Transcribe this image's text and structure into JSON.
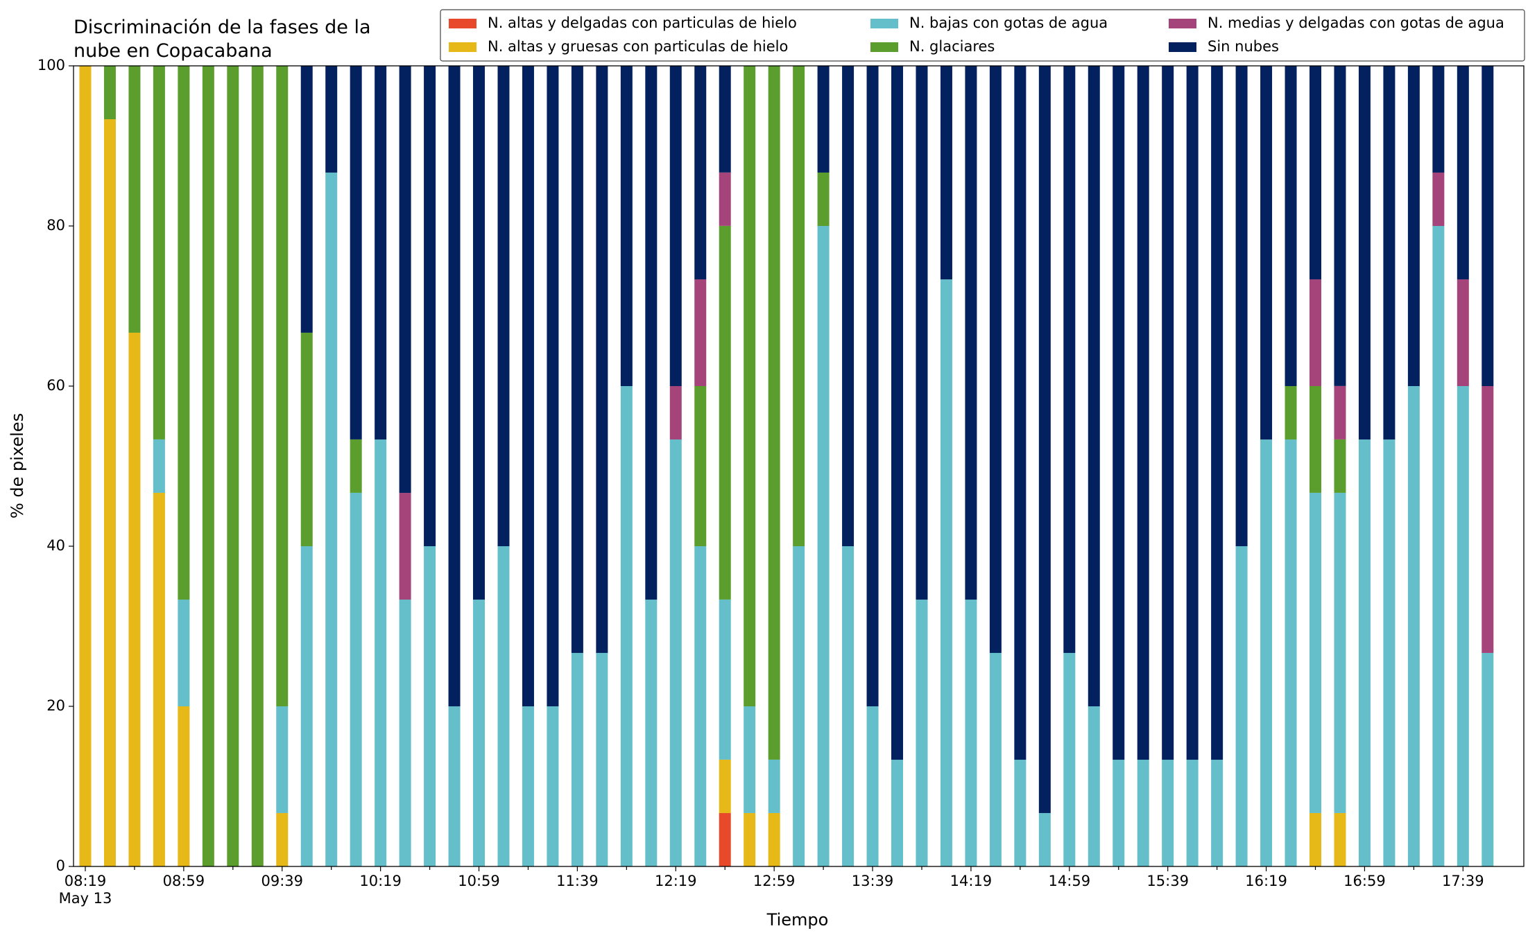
{
  "chart_data": {
    "type": "stacked_bar",
    "title": "Discriminación de la fases de la\nnube en Copacabana",
    "xlabel": "Tiempo",
    "ylabel": "% de pixeles",
    "date": "May 13",
    "categories": [
      "08:19",
      null,
      null,
      null,
      "08:59",
      null,
      null,
      null,
      "09:39",
      null,
      null,
      null,
      "10:19",
      null,
      null,
      null,
      "10:59",
      null,
      null,
      null,
      "11:39",
      null,
      null,
      null,
      "12:19",
      null,
      null,
      null,
      "12:59",
      null,
      null,
      null,
      "13:39",
      null,
      null,
      null,
      "14:19",
      null,
      null,
      null,
      "14:59",
      null,
      null,
      null,
      "15:39",
      null,
      null,
      null,
      "16:19",
      null,
      null,
      null,
      "16:59",
      null,
      null,
      null,
      "17:39",
      null
    ],
    "ylim": [
      0,
      100
    ],
    "yticks": [
      0,
      20,
      40,
      60,
      80,
      100
    ],
    "legend": "upper right",
    "series": [
      {
        "name": "N. altas y delgadas con particulas de hielo",
        "color": "#e8492b",
        "values": [
          0,
          0,
          0,
          0,
          0,
          0,
          0,
          0,
          0,
          0,
          0,
          0,
          0,
          0,
          0,
          0,
          0,
          0,
          0,
          0,
          0,
          0,
          0,
          0,
          0,
          0,
          6.67,
          0,
          0,
          0,
          0,
          0,
          0,
          0,
          0,
          0,
          0,
          0,
          0,
          0,
          0,
          0,
          0,
          0,
          0,
          0,
          0,
          0,
          0,
          0,
          0,
          0,
          0,
          0,
          0,
          0,
          0,
          0
        ]
      },
      {
        "name": "N. altas y gruesas con particulas de hielo",
        "color": "#e6b818",
        "values": [
          100,
          93.33,
          66.67,
          46.67,
          20,
          0,
          0,
          0,
          6.67,
          0,
          0,
          0,
          0,
          0,
          0,
          0,
          0,
          0,
          0,
          0,
          0,
          0,
          0,
          0,
          0,
          0,
          6.67,
          6.67,
          6.67,
          0,
          0,
          0,
          0,
          0,
          0,
          0,
          0,
          0,
          0,
          0,
          0,
          0,
          0,
          0,
          0,
          0,
          0,
          0,
          0,
          0,
          6.67,
          6.67,
          0,
          0,
          0,
          0,
          0,
          0
        ]
      },
      {
        "name": "N. bajas con gotas de agua",
        "color": "#65bfca",
        "values": [
          0,
          0,
          0,
          6.67,
          13.33,
          0,
          0,
          0,
          13.33,
          40,
          86.67,
          46.67,
          53.33,
          33.33,
          40,
          20,
          33.33,
          40,
          20,
          20,
          26.67,
          26.67,
          60,
          33.33,
          53.33,
          40,
          20,
          13.33,
          6.67,
          40,
          80,
          40,
          20,
          13.33,
          33.33,
          73.33,
          33.33,
          26.67,
          13.33,
          6.67,
          26.67,
          20,
          13.33,
          13.33,
          13.33,
          13.33,
          13.33,
          40,
          53.33,
          53.33,
          40,
          40,
          53.33,
          53.33,
          60,
          80,
          60,
          26.67
        ]
      },
      {
        "name": "N. glaciares",
        "color": "#5c9e2e",
        "values": [
          0,
          6.67,
          33.33,
          46.67,
          66.67,
          100,
          100,
          100,
          80,
          26.67,
          0,
          6.67,
          0,
          0,
          0,
          0,
          0,
          0,
          0,
          0,
          0,
          0,
          0,
          0,
          0,
          20,
          46.67,
          80,
          86.67,
          60,
          6.67,
          0,
          0,
          0,
          0,
          0,
          0,
          0,
          0,
          0,
          0,
          0,
          0,
          0,
          0,
          0,
          0,
          0,
          0,
          6.67,
          13.33,
          6.67,
          0,
          0,
          0,
          0,
          0,
          0
        ]
      },
      {
        "name": "N. medias y delgadas con gotas de agua",
        "color": "#a5447a",
        "values": [
          0,
          0,
          0,
          0,
          0,
          0,
          0,
          0,
          0,
          0,
          0,
          0,
          0,
          13.33,
          0,
          0,
          0,
          0,
          0,
          0,
          0,
          0,
          0,
          0,
          6.67,
          13.33,
          6.67,
          0,
          0,
          0,
          0,
          0,
          0,
          0,
          0,
          0,
          0,
          0,
          0,
          0,
          0,
          0,
          0,
          0,
          0,
          0,
          0,
          0,
          0,
          0,
          13.33,
          6.67,
          0,
          0,
          0,
          6.67,
          13.33,
          33.33
        ]
      },
      {
        "name": "Sin nubes",
        "color": "#03215e",
        "values": [
          0,
          0,
          0,
          0,
          0,
          0,
          0,
          0,
          0,
          33.33,
          13.33,
          46.67,
          46.67,
          53.33,
          60,
          80,
          66.67,
          60,
          80,
          80,
          73.33,
          73.33,
          40,
          66.67,
          40,
          26.67,
          13.33,
          0,
          0,
          0,
          13.33,
          60,
          80,
          86.67,
          66.67,
          26.67,
          66.67,
          73.33,
          86.67,
          93.33,
          73.33,
          80,
          86.67,
          86.67,
          86.67,
          86.67,
          86.67,
          60,
          46.67,
          40,
          26.67,
          40,
          46.67,
          46.67,
          40,
          13.33,
          26.67,
          40
        ]
      }
    ]
  }
}
